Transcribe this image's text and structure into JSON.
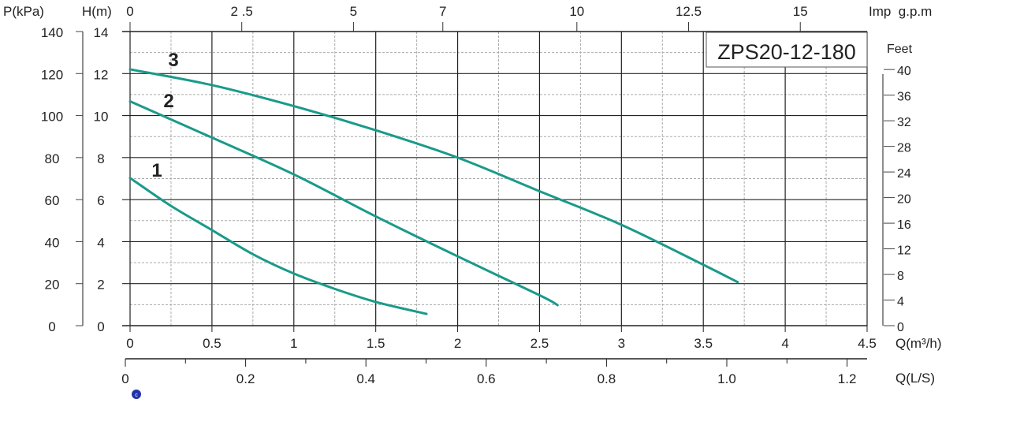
{
  "chart_data": {
    "type": "line",
    "title": "ZPS20-12-180",
    "xlabel": "Q(m³/h)",
    "ylabel": "H(m)",
    "xlim": [
      0,
      4.5
    ],
    "ylim": [
      0,
      14
    ],
    "grid": true,
    "x_ticks": [
      "0",
      "0.5",
      "1",
      "1.5",
      "2",
      "2.5",
      "3",
      "3.5",
      "4",
      "4.5"
    ],
    "y_ticks": [
      "0",
      "2",
      "4",
      "6",
      "8",
      "10",
      "12",
      "14"
    ],
    "pressure_axis": {
      "label": "P(kPa)",
      "ticks": [
        "0",
        "20",
        "40",
        "60",
        "80",
        "100",
        "120",
        "140"
      ]
    },
    "feet_axis": {
      "label": "Feet",
      "ticks": [
        "0",
        "4",
        "8",
        "12",
        "16",
        "20",
        "24",
        "28",
        "32",
        "36",
        "40"
      ]
    },
    "gpm_axis": {
      "label": "Imp  g.p.m",
      "ticks": [
        {
          "label": "0",
          "value": 0
        },
        {
          "label": "2 .5",
          "value": 2.5
        },
        {
          "label": "5",
          "value": 5
        },
        {
          "label": "7",
          "value": 7
        },
        {
          "label": "10",
          "value": 10
        },
        {
          "label": "12.5",
          "value": 12.5
        },
        {
          "label": "15",
          "value": 15
        }
      ]
    },
    "ls_axis": {
      "label": "Q(L/S)",
      "ticks": [
        "0",
        "0.2",
        "0.4",
        "0.6",
        "0.8",
        "1.0",
        "1.2"
      ]
    },
    "series": [
      {
        "name": "1",
        "x": [
          0,
          0.25,
          0.5,
          0.75,
          1.0,
          1.25,
          1.5,
          1.81
        ],
        "y": [
          7.03,
          5.7,
          4.55,
          3.4,
          2.48,
          1.75,
          1.13,
          0.56
        ]
      },
      {
        "name": "2",
        "x": [
          0,
          0.5,
          1.0,
          1.5,
          2.0,
          2.5,
          2.61
        ],
        "y": [
          10.68,
          8.95,
          7.2,
          5.2,
          3.3,
          1.45,
          0.98
        ]
      },
      {
        "name": "3",
        "x": [
          0,
          0.5,
          1.0,
          1.5,
          2.0,
          2.5,
          3.0,
          3.5,
          3.71
        ],
        "y": [
          12.2,
          11.45,
          10.45,
          9.3,
          8.0,
          6.4,
          4.8,
          2.9,
          2.07
        ]
      }
    ],
    "series_color": "#1a9a8a"
  }
}
